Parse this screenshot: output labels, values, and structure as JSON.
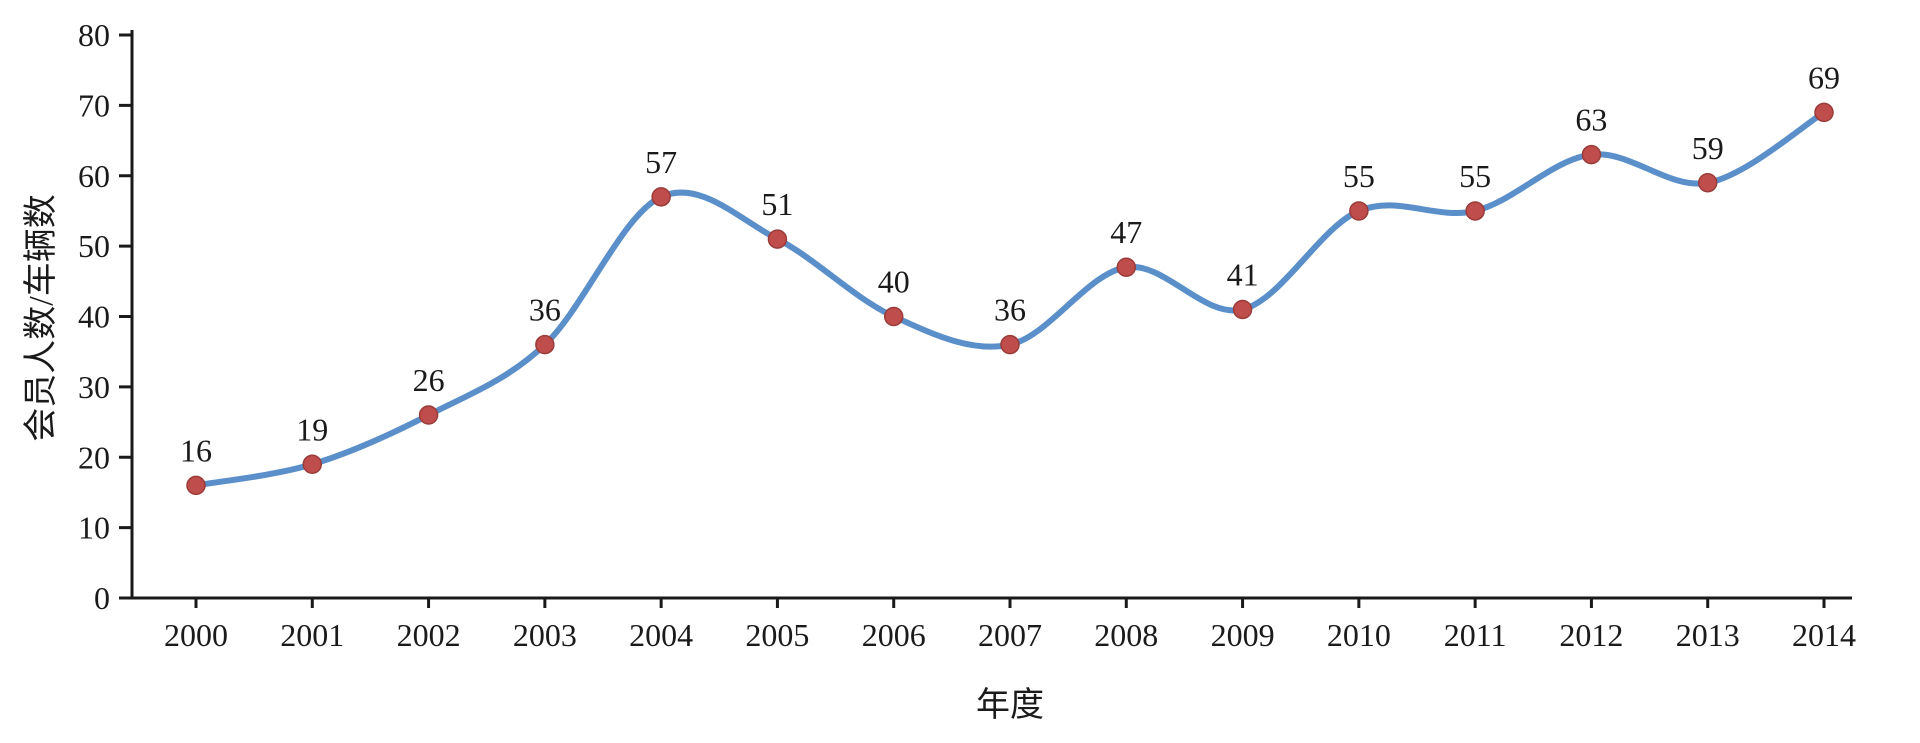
{
  "chart_data": {
    "type": "line",
    "title": "",
    "xlabel": "年度",
    "ylabel": "会员人数/车辆数",
    "categories": [
      "2000",
      "2001",
      "2002",
      "2003",
      "2004",
      "2005",
      "2006",
      "2007",
      "2008",
      "2009",
      "2010",
      "2011",
      "2012",
      "2013",
      "2014"
    ],
    "values": [
      16,
      19,
      26,
      36,
      57,
      51,
      40,
      36,
      47,
      41,
      55,
      55,
      63,
      59,
      69
    ],
    "ylim": [
      0,
      80
    ],
    "yticks": [
      0,
      10,
      20,
      30,
      40,
      50,
      60,
      70,
      80
    ],
    "grid": false,
    "legend_position": "none",
    "line_color": "#5b8fc9",
    "marker_color": "#bf4d4b",
    "marker_edge_color": "#9a3c3a",
    "axis_color": "#1a1a1a",
    "text_color": "#1a1a1a"
  }
}
